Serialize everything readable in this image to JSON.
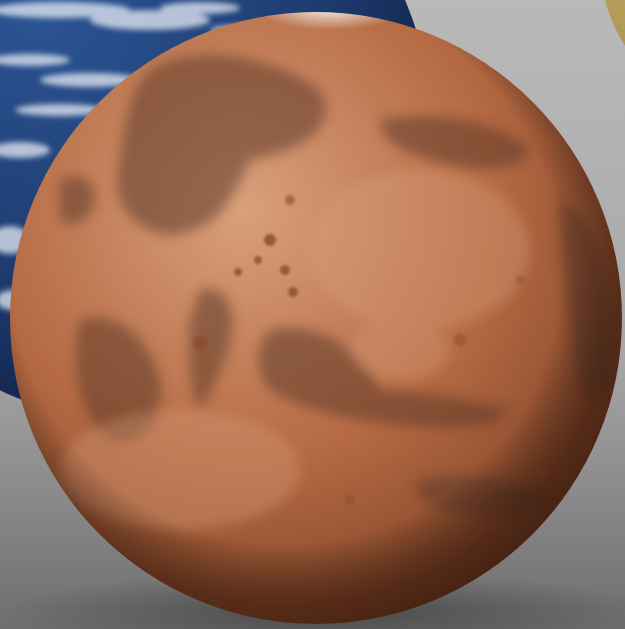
{
  "scene": {
    "subjects": [
      {
        "name": "mars",
        "icon": "mars-planet-icon"
      },
      {
        "name": "earth",
        "icon": "earth-planet-icon"
      },
      {
        "name": "third-planet",
        "icon": "planet-icon"
      }
    ],
    "colors": {
      "background_light": "#b9b9b9",
      "background_dark": "#6e6e6e",
      "mars_highlight": "#d9a07c",
      "mars_base": "#b56a43",
      "mars_shadow": "#5a2e1b",
      "mars_dark_region": "#5e3a2b",
      "mars_polar_cap": "#f4f1ee",
      "earth_ocean": "#1d3a6e",
      "earth_ocean_dark": "#0c1c3e",
      "earth_cloud": "#e7ecf5",
      "third_planet": "#c9ad6a"
    }
  }
}
